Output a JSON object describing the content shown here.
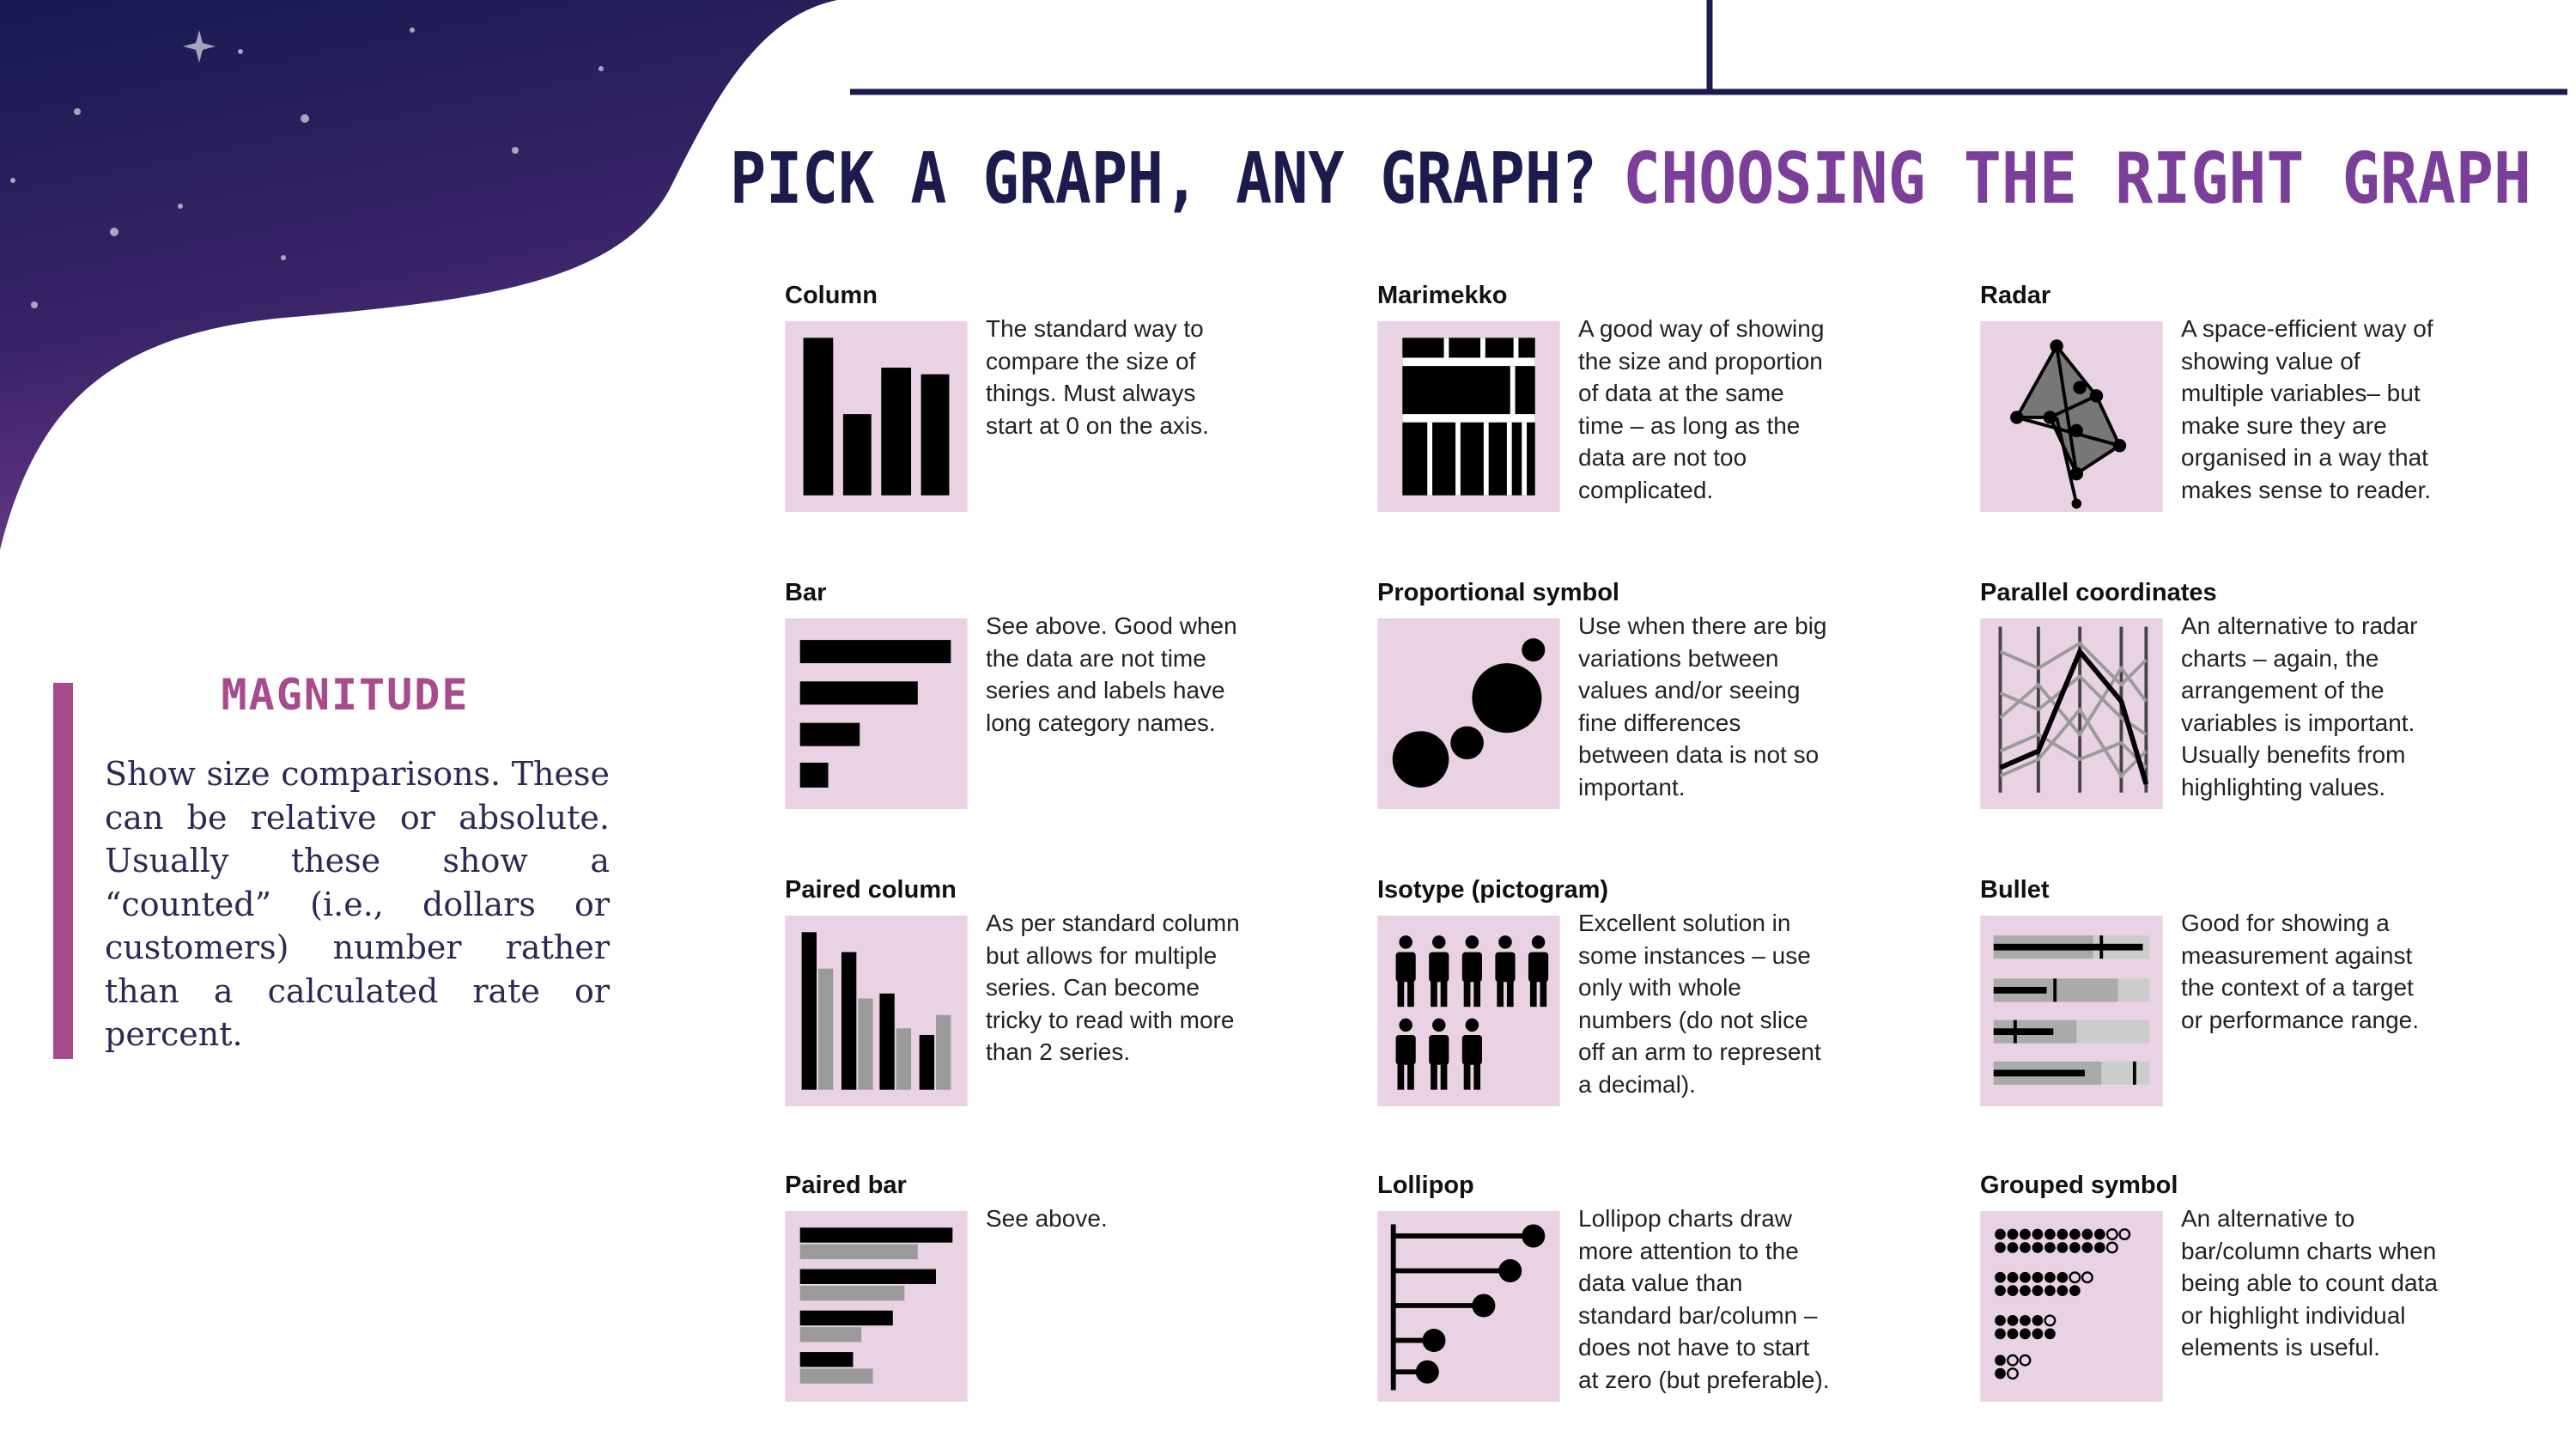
{
  "header": {
    "title": "PICK A GRAPH, ANY GRAPH?",
    "subtitle": "CHOOSING THE RIGHT GRAPH"
  },
  "sidebar": {
    "heading": "MAGNITUDE",
    "text": "Show size comparisons. These can be relative or absolute. Usually these show a “counted” (i.e., dollars or customers) number rather than a calculated rate or percent."
  },
  "items": [
    {
      "name": "Column",
      "description": "The standard way to compare the size of things. Must always start at 0 on the axis."
    },
    {
      "name": "Marimekko",
      "description": "A good way of showing the size and proportion of data at the same time – as long as the data are not too complicated."
    },
    {
      "name": "Radar",
      "description": "A space-efficient way of showing value of multiple variables– but make sure they are organised in a way that makes sense to reader."
    },
    {
      "name": "Bar",
      "description": "See above. Good when the data are not time series and labels have long category names."
    },
    {
      "name": "Proportional symbol",
      "description": "Use when there are big variations between values and/or seeing fine differences between data is not so important."
    },
    {
      "name": "Parallel coordinates",
      "description": "An alternative to radar charts – again, the arrangement of the variables is important. Usually benefits from highlighting values."
    },
    {
      "name": "Paired column",
      "description": "As per standard column but allows for multiple series. Can become tricky to read with more than 2 series."
    },
    {
      "name": "Isotype (pictogram)",
      "description": "Excellent solution in some instances – use only with whole numbers (do not slice off an arm to represent a decimal)."
    },
    {
      "name": "Bullet",
      "description": "Good for showing a measurement against the context of a target or performance range."
    },
    {
      "name": "Paired bar",
      "description": "See above."
    },
    {
      "name": "Lollipop",
      "description": "Lollipop charts draw more attention to the data value than standard bar/column – does not have to start at zero (but preferable)."
    },
    {
      "name": "Grouped symbol",
      "description": "An alternative to bar/column charts when being able to count data or highlight individual elements is useful."
    }
  ]
}
